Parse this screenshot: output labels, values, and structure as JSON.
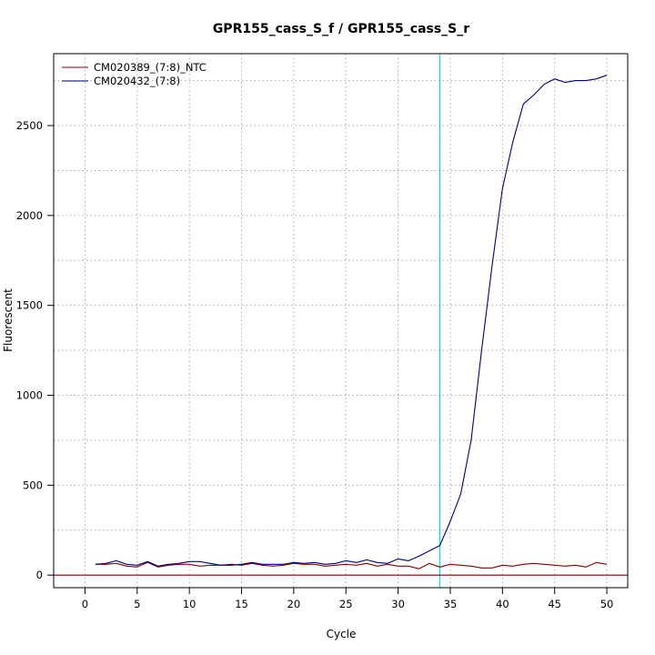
{
  "chart_data": {
    "type": "line",
    "title": "GPR155_cass_S_f / GPR155_cass_S_r",
    "xlabel": "Cycle",
    "ylabel": "Fluorescent",
    "xlim": [
      -3,
      52
    ],
    "ylim": [
      -70,
      2900
    ],
    "xticks": [
      0,
      5,
      10,
      15,
      20,
      25,
      30,
      35,
      40,
      45,
      50
    ],
    "xticks_labels": [
      "0",
      "5",
      "10",
      "15",
      "20",
      "25",
      "30",
      "35",
      "40",
      "45",
      "50"
    ],
    "yticks": [
      0,
      500,
      1000,
      1500,
      2000,
      2500
    ],
    "yticks_labels": [
      "0",
      "500",
      "1000",
      "1500",
      "2000",
      "2500"
    ],
    "grid": true,
    "grid_style": "dotted",
    "legend_position": "top-left",
    "threshold_vertical_x": 34,
    "threshold_color": "#00e5ee",
    "baseline_y": 0,
    "baseline_color": "#8b0000",
    "series": [
      {
        "name": "CM020389_(7:8)_NTC",
        "color": "#8b0000",
        "x": [
          1,
          2,
          3,
          4,
          5,
          6,
          7,
          8,
          9,
          10,
          11,
          12,
          13,
          14,
          15,
          16,
          17,
          18,
          19,
          20,
          21,
          22,
          23,
          24,
          25,
          26,
          27,
          28,
          29,
          30,
          31,
          32,
          33,
          34,
          35,
          36,
          37,
          38,
          39,
          40,
          41,
          42,
          43,
          44,
          45,
          46,
          47,
          48,
          49,
          50
        ],
        "y": [
          60,
          60,
          65,
          50,
          45,
          70,
          45,
          55,
          60,
          60,
          50,
          55,
          55,
          60,
          55,
          65,
          55,
          50,
          55,
          65,
          60,
          60,
          50,
          55,
          60,
          55,
          65,
          50,
          60,
          50,
          50,
          35,
          65,
          45,
          60,
          55,
          50,
          40,
          40,
          55,
          50,
          60,
          65,
          60,
          55,
          50,
          55,
          45,
          70,
          60
        ]
      },
      {
        "name": "CM020432_(7:8)",
        "color": "#000080",
        "x": [
          1,
          2,
          3,
          4,
          5,
          6,
          7,
          8,
          9,
          10,
          11,
          12,
          13,
          14,
          15,
          16,
          17,
          18,
          19,
          20,
          21,
          22,
          23,
          24,
          25,
          26,
          27,
          28,
          29,
          30,
          31,
          32,
          33,
          34,
          35,
          36,
          37,
          38,
          39,
          40,
          41,
          42,
          43,
          44,
          45,
          46,
          47,
          48,
          49,
          50
        ],
        "y": [
          60,
          65,
          80,
          60,
          55,
          75,
          50,
          60,
          65,
          75,
          75,
          65,
          55,
          55,
          60,
          70,
          60,
          60,
          60,
          70,
          65,
          70,
          60,
          65,
          80,
          70,
          85,
          70,
          65,
          90,
          80,
          105,
          135,
          165,
          300,
          450,
          750,
          1250,
          1720,
          2150,
          2410,
          2620,
          2670,
          2730,
          2760,
          2740,
          2750,
          2750,
          2760,
          2780
        ]
      }
    ]
  }
}
